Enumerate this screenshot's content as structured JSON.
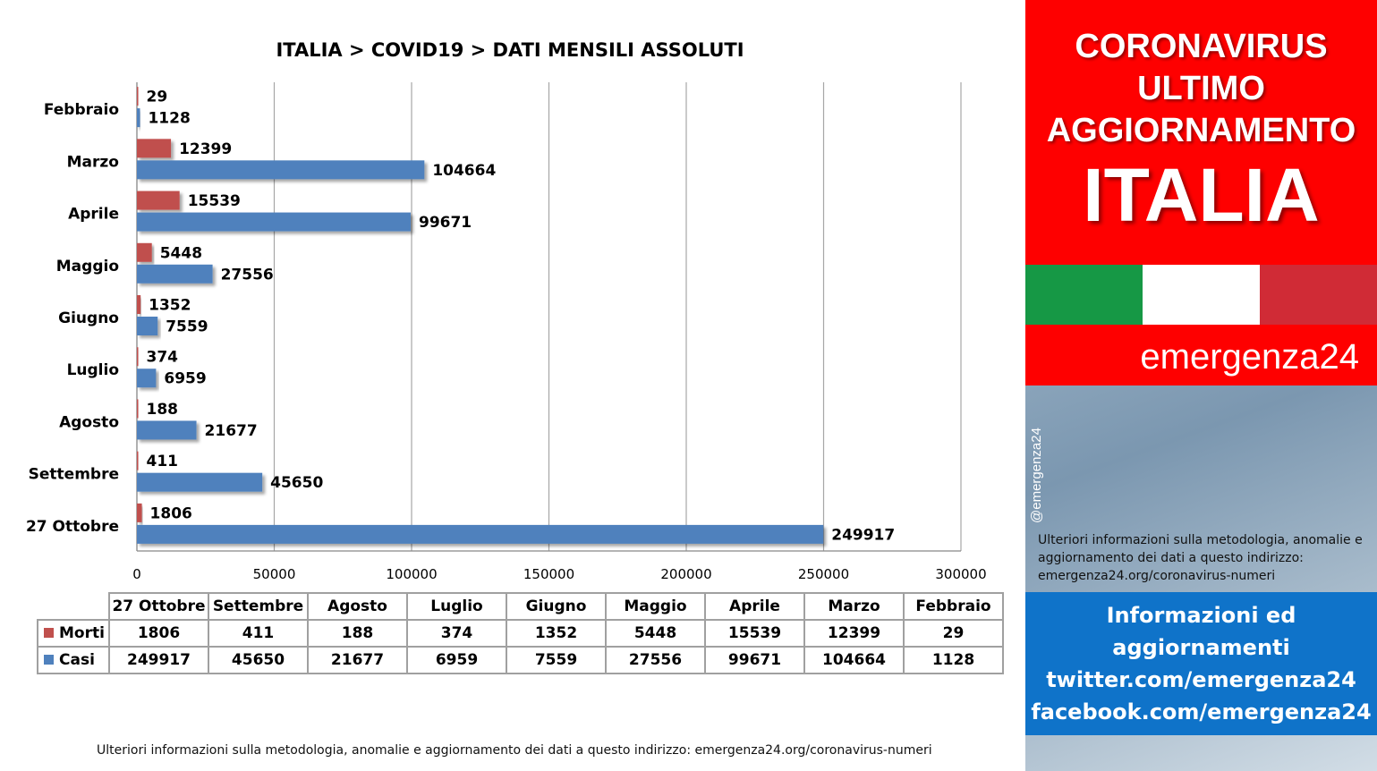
{
  "chart_data": {
    "type": "bar",
    "orientation": "horizontal",
    "title": "ITALIA >  COVID19 > DATI MENSILI  ASSOLUTI",
    "categories": [
      "Febbraio",
      "Marzo",
      "Aprile",
      "Maggio",
      "Giugno",
      "Luglio",
      "Agosto",
      "Settembre",
      "27 Ottobre"
    ],
    "series": [
      {
        "name": "Morti",
        "color": "#c0504d",
        "values": [
          29,
          12399,
          15539,
          5448,
          1352,
          374,
          188,
          411,
          1806
        ]
      },
      {
        "name": "Casi",
        "color": "#4f81bd",
        "values": [
          1128,
          104664,
          99671,
          27556,
          7559,
          6959,
          21677,
          45650,
          249917
        ]
      }
    ],
    "xlim": [
      0,
      300000
    ],
    "xticks": [
      "0",
      "50000",
      "100000",
      "150000",
      "200000",
      "250000",
      "300000"
    ],
    "grid": true,
    "legend": "data-table"
  },
  "table": {
    "columns": [
      "27 Ottobre",
      "Settembre",
      "Agosto",
      "Luglio",
      "Giugno",
      "Maggio",
      "Aprile",
      "Marzo",
      "Febbraio"
    ],
    "rows": [
      {
        "label": "Morti",
        "color": "#c0504d",
        "values": [
          "1806",
          "411",
          "188",
          "374",
          "1352",
          "5448",
          "15539",
          "12399",
          "29"
        ]
      },
      {
        "label": "Casi",
        "color": "#4f81bd",
        "values": [
          "249917",
          "45650",
          "21677",
          "6959",
          "7559",
          "27556",
          "99671",
          "104664",
          "1128"
        ]
      }
    ]
  },
  "footer_note": "Ulteriori informazioni sulla metodologia, anomalie e aggiornamento dei dati a questo indirizzo: emergenza24.org/coronavirus-numeri",
  "panel": {
    "headline_lines": [
      "CORONAVIRUS",
      "ULTIMO",
      "AGGIORNAMENTO"
    ],
    "country": "ITALIA",
    "brand": "emergenza24",
    "handle": "@emergenza24",
    "note": "Ulteriori informazioni sulla metodologia, anomalie e aggiornamento dei dati a questo indirizzo: emergenza24.org/coronavirus-numeri",
    "info_lines": [
      "Informazioni ed",
      "aggiornamenti",
      "twitter.com/emergenza24",
      "facebook.com/emergenza24"
    ]
  }
}
